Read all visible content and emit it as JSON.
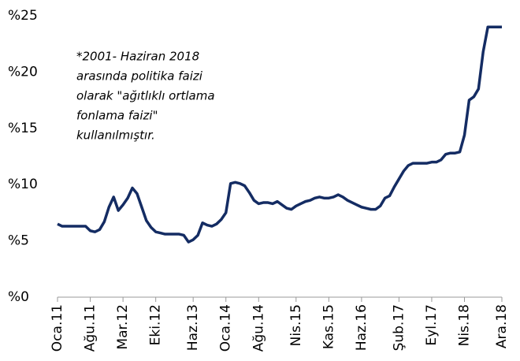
{
  "chart_data": {
    "type": "line",
    "annotation": [
      "*2001- Haziran 2018",
      "arasında politika faizi",
      "olarak \"ağıtlıklı ortlama",
      "fonlama faizi\"",
      "kullanılmıştır."
    ],
    "categories": [
      "Oca.11",
      null,
      null,
      null,
      null,
      null,
      null,
      "Ağu.11",
      null,
      null,
      null,
      null,
      null,
      null,
      "Mar.12",
      null,
      null,
      null,
      null,
      null,
      null,
      "Eki.12",
      null,
      null,
      null,
      null,
      null,
      null,
      null,
      "Haz.13",
      null,
      null,
      null,
      null,
      null,
      null,
      "Oca.14",
      null,
      null,
      null,
      null,
      null,
      null,
      "Ağu.14",
      null,
      null,
      null,
      null,
      null,
      null,
      null,
      "Nis.15",
      null,
      null,
      null,
      null,
      null,
      null,
      "Kas.15",
      null,
      null,
      null,
      null,
      null,
      null,
      "Haz.16",
      null,
      null,
      null,
      null,
      null,
      null,
      null,
      "Şub.17",
      null,
      null,
      null,
      null,
      null,
      null,
      "Eyl.17",
      null,
      null,
      null,
      null,
      null,
      null,
      "Nis.18",
      null,
      null,
      null,
      null,
      null,
      null,
      null,
      "Ara.18"
    ],
    "series": [
      {
        "color": "#142c63",
        "values": [
          6.5,
          6.3,
          6.3,
          6.3,
          6.3,
          6.3,
          6.3,
          5.9,
          5.8,
          6.0,
          6.7,
          8.0,
          8.9,
          7.7,
          8.2,
          8.8,
          9.7,
          9.2,
          8.0,
          6.8,
          6.2,
          5.8,
          5.7,
          5.6,
          5.6,
          5.6,
          5.6,
          5.5,
          4.9,
          5.1,
          5.5,
          6.6,
          6.4,
          6.3,
          6.5,
          6.9,
          7.5,
          10.1,
          10.2,
          10.1,
          9.9,
          9.3,
          8.6,
          8.3,
          8.4,
          8.4,
          8.3,
          8.5,
          8.2,
          7.9,
          7.8,
          8.1,
          8.3,
          8.5,
          8.6,
          8.8,
          8.9,
          8.8,
          8.8,
          8.9,
          9.1,
          8.9,
          8.6,
          8.4,
          8.2,
          8.0,
          7.9,
          7.8,
          7.8,
          8.1,
          8.8,
          9.0,
          9.8,
          10.5,
          11.2,
          11.7,
          11.9,
          11.9,
          11.9,
          11.9,
          12.0,
          12.0,
          12.2,
          12.7,
          12.8,
          12.8,
          12.9,
          14.4,
          17.5,
          17.8,
          18.5,
          21.8,
          24.0,
          24.0,
          24.0,
          24.0
        ]
      }
    ],
    "ylim": [
      0,
      25
    ],
    "yticks": [
      {
        "value": 0,
        "label": "%0"
      },
      {
        "value": 5,
        "label": "%5"
      },
      {
        "value": 10,
        "label": "%10"
      },
      {
        "value": 15,
        "label": "%15"
      },
      {
        "value": 20,
        "label": "%20"
      },
      {
        "value": 25,
        "label": "%25"
      }
    ]
  }
}
